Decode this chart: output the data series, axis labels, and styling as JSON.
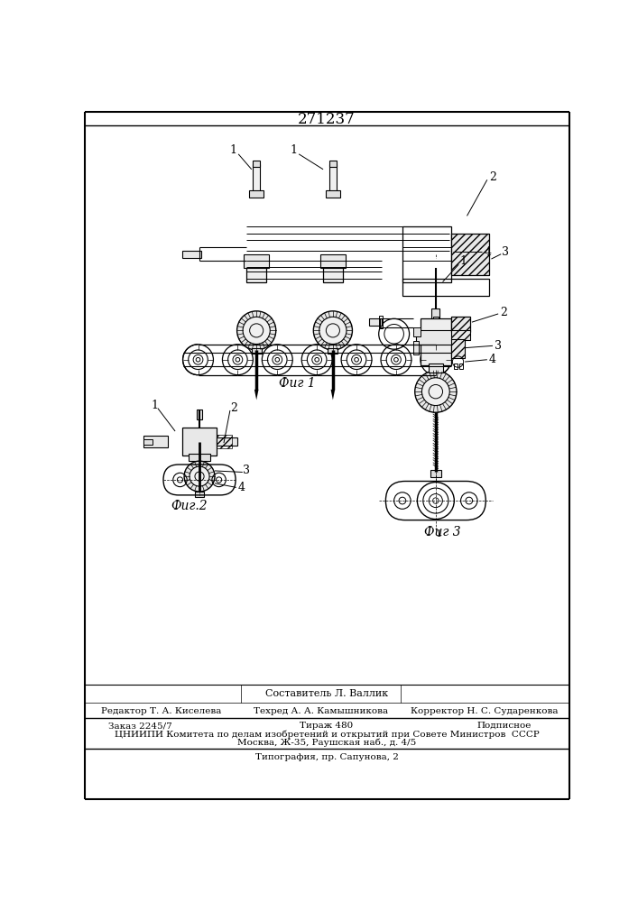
{
  "title": "271237",
  "fig_labels": [
    "Фиг 1",
    "Фиг.2",
    "Фиг 3"
  ],
  "footer_line1": "Составитель Л. Валлик",
  "footer_line2_col1": "Редактор Т. А. Киселева",
  "footer_line2_col2": "Техред А. А. Камышникова",
  "footer_line2_col3": "Корректор Н. С. Сударенкова",
  "footer_line3_col1": "Заказ 2245/7",
  "footer_line3_col2": "Тираж 480",
  "footer_line3_col3": "Подписное",
  "footer_line4": "ЦНИИПИ Комитета по делам изобретений и открытий при Совете Министров  СССР",
  "footer_line5": "Москва, Ж-35, Раушская наб., д. 4/5",
  "footer_line6": "Типография, пр. Сапунова, 2",
  "bg_color": "#ffffff",
  "line_color": "#000000",
  "text_color": "#000000"
}
